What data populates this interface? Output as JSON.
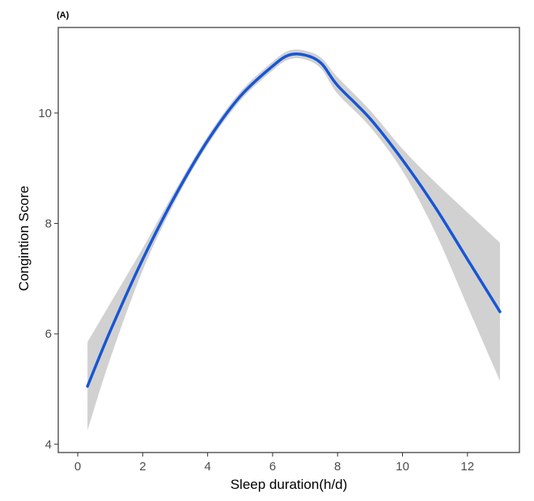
{
  "chart_data": {
    "type": "line",
    "panel_label": "(A)",
    "xlabel": "Sleep duration(h/d)",
    "ylabel": "Congintion Score",
    "xlim": [
      -0.6,
      13.6
    ],
    "ylim": [
      3.85,
      11.55
    ],
    "x_ticks": [
      0,
      2,
      4,
      6,
      8,
      10,
      12
    ],
    "y_ticks": [
      4,
      6,
      8,
      10
    ],
    "grid": false,
    "legend": "none",
    "colors": {
      "line": "#1756d4",
      "ribbon": "#bebebe",
      "frame": "#333333"
    },
    "series": [
      {
        "x": [
          0.3,
          1.0,
          2.0,
          3.0,
          4.0,
          5.0,
          6.0,
          6.5,
          7.0,
          7.5,
          8.0,
          9.0,
          10.0,
          11.0,
          12.0,
          13.0
        ],
        "y": [
          5.05,
          6.05,
          7.35,
          8.5,
          9.5,
          10.3,
          10.85,
          11.05,
          11.05,
          10.9,
          10.5,
          9.9,
          9.15,
          8.3,
          7.35,
          6.4
        ],
        "lower": [
          4.25,
          5.55,
          7.15,
          8.4,
          9.42,
          10.22,
          10.77,
          10.97,
          10.97,
          10.8,
          10.35,
          9.75,
          8.95,
          7.85,
          6.5,
          5.15
        ],
        "upper": [
          5.85,
          6.55,
          7.55,
          8.6,
          9.58,
          10.38,
          10.93,
          11.13,
          11.13,
          11.0,
          10.65,
          10.05,
          9.35,
          8.75,
          8.2,
          7.65
        ]
      }
    ]
  }
}
